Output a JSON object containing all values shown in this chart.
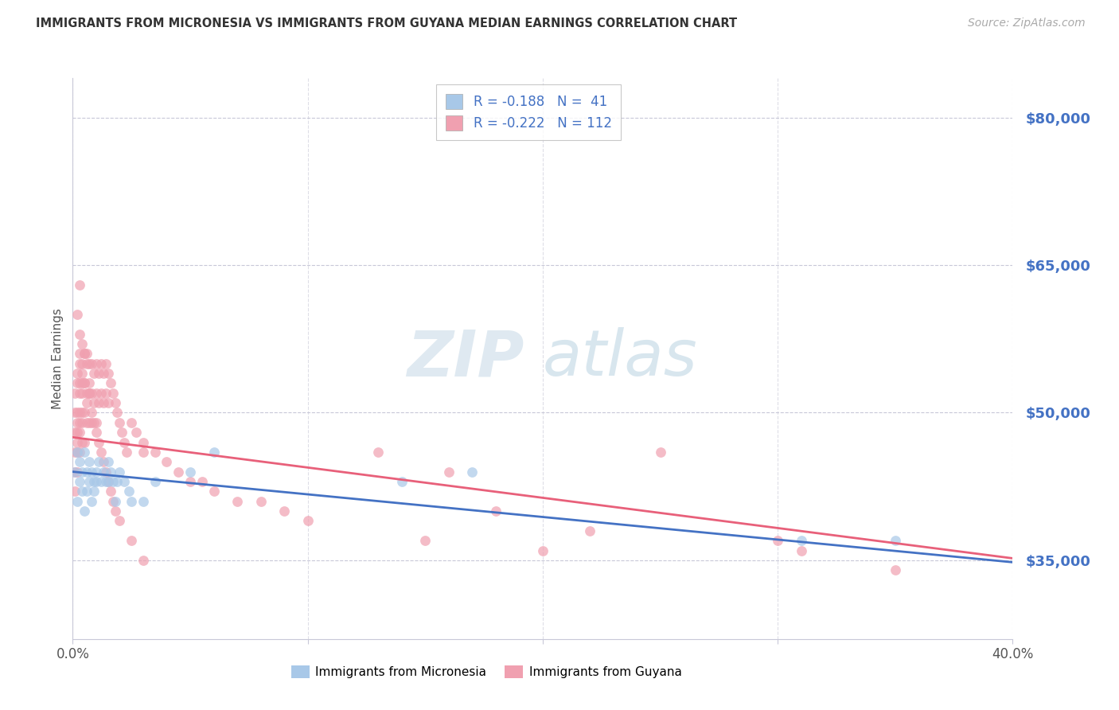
{
  "title": "IMMIGRANTS FROM MICRONESIA VS IMMIGRANTS FROM GUYANA MEDIAN EARNINGS CORRELATION CHART",
  "source": "Source: ZipAtlas.com",
  "ylabel": "Median Earnings",
  "yticks": [
    35000,
    50000,
    65000,
    80000
  ],
  "ytick_labels": [
    "$35,000",
    "$50,000",
    "$65,000",
    "$80,000"
  ],
  "xticks": [
    0.0,
    0.1,
    0.2,
    0.3,
    0.4
  ],
  "xtick_labels": [
    "0.0%",
    "",
    "",
    "",
    "40.0%"
  ],
  "xmin": 0.0,
  "xmax": 0.4,
  "ymin": 27000,
  "ymax": 84000,
  "watermark_zip": "ZIP",
  "watermark_atlas": "atlas",
  "legend_line1": "R = -0.188   N =  41",
  "legend_line2": "R = -0.222   N = 112",
  "color_micronesia": "#A8C8E8",
  "color_guyana": "#F0A0B0",
  "color_line_micronesia": "#4472C4",
  "color_line_guyana": "#E8607A",
  "color_ytick": "#4472C4",
  "color_grid": "#C8C8D8",
  "micronesia_x": [
    0.001,
    0.002,
    0.002,
    0.003,
    0.003,
    0.004,
    0.004,
    0.005,
    0.005,
    0.006,
    0.006,
    0.007,
    0.007,
    0.008,
    0.008,
    0.009,
    0.009,
    0.01,
    0.01,
    0.011,
    0.012,
    0.013,
    0.014,
    0.015,
    0.015,
    0.016,
    0.017,
    0.018,
    0.019,
    0.02,
    0.022,
    0.024,
    0.025,
    0.03,
    0.035,
    0.05,
    0.06,
    0.14,
    0.17,
    0.31,
    0.35
  ],
  "micronesia_y": [
    44000,
    41000,
    46000,
    43000,
    45000,
    44000,
    42000,
    46000,
    40000,
    44000,
    42000,
    45000,
    43000,
    44000,
    41000,
    43000,
    42000,
    44000,
    43000,
    45000,
    43000,
    44000,
    43000,
    45000,
    43000,
    44000,
    43000,
    41000,
    43000,
    44000,
    43000,
    42000,
    41000,
    41000,
    43000,
    44000,
    46000,
    43000,
    44000,
    37000,
    37000
  ],
  "guyana_x": [
    0.001,
    0.001,
    0.001,
    0.001,
    0.001,
    0.001,
    0.002,
    0.002,
    0.002,
    0.002,
    0.002,
    0.002,
    0.002,
    0.002,
    0.003,
    0.003,
    0.003,
    0.003,
    0.003,
    0.003,
    0.003,
    0.004,
    0.004,
    0.004,
    0.004,
    0.004,
    0.004,
    0.005,
    0.005,
    0.005,
    0.005,
    0.006,
    0.006,
    0.006,
    0.006,
    0.007,
    0.007,
    0.007,
    0.007,
    0.008,
    0.008,
    0.008,
    0.009,
    0.009,
    0.01,
    0.01,
    0.01,
    0.011,
    0.011,
    0.012,
    0.012,
    0.013,
    0.013,
    0.014,
    0.014,
    0.015,
    0.015,
    0.016,
    0.017,
    0.018,
    0.019,
    0.02,
    0.021,
    0.022,
    0.023,
    0.025,
    0.027,
    0.03,
    0.03,
    0.035,
    0.04,
    0.045,
    0.05,
    0.055,
    0.06,
    0.07,
    0.08,
    0.09,
    0.1,
    0.15,
    0.2,
    0.002,
    0.003,
    0.003,
    0.003,
    0.004,
    0.004,
    0.005,
    0.005,
    0.006,
    0.007,
    0.008,
    0.009,
    0.01,
    0.011,
    0.012,
    0.013,
    0.014,
    0.015,
    0.016,
    0.017,
    0.018,
    0.02,
    0.025,
    0.03,
    0.25,
    0.3,
    0.18,
    0.22,
    0.31,
    0.35,
    0.13,
    0.16
  ],
  "guyana_y": [
    48000,
    50000,
    52000,
    44000,
    46000,
    42000,
    54000,
    50000,
    47000,
    53000,
    44000,
    49000,
    46000,
    48000,
    55000,
    52000,
    48000,
    50000,
    46000,
    53000,
    49000,
    55000,
    52000,
    49000,
    53000,
    50000,
    47000,
    56000,
    53000,
    50000,
    47000,
    55000,
    52000,
    49000,
    56000,
    55000,
    52000,
    49000,
    53000,
    55000,
    52000,
    49000,
    54000,
    51000,
    55000,
    52000,
    49000,
    54000,
    51000,
    55000,
    52000,
    54000,
    51000,
    55000,
    52000,
    54000,
    51000,
    53000,
    52000,
    51000,
    50000,
    49000,
    48000,
    47000,
    46000,
    49000,
    48000,
    47000,
    46000,
    46000,
    45000,
    44000,
    43000,
    43000,
    42000,
    41000,
    41000,
    40000,
    39000,
    37000,
    36000,
    60000,
    63000,
    58000,
    56000,
    57000,
    54000,
    56000,
    53000,
    51000,
    52000,
    50000,
    49000,
    48000,
    47000,
    46000,
    45000,
    44000,
    43000,
    42000,
    41000,
    40000,
    39000,
    37000,
    35000,
    46000,
    37000,
    40000,
    38000,
    36000,
    34000,
    46000,
    44000
  ]
}
